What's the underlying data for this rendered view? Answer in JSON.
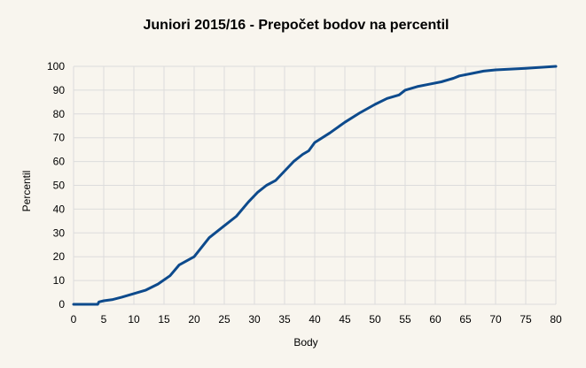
{
  "chart_data": {
    "type": "line",
    "title": "Juniori 2015/16 - Prepočet bodov na percentil",
    "xlabel": "Body",
    "ylabel": "Percentil",
    "xlim": [
      0,
      80
    ],
    "ylim": [
      0,
      100
    ],
    "x_ticks": [
      "0",
      "5",
      "10",
      "15",
      "20",
      "25",
      "30",
      "35",
      "40",
      "45",
      "50",
      "55",
      "60",
      "65",
      "70",
      "75",
      "80"
    ],
    "y_ticks": [
      "0",
      "10",
      "20",
      "30",
      "40",
      "50",
      "60",
      "70",
      "80",
      "90",
      "100"
    ],
    "grid": true,
    "line_color": "#0d4a8c",
    "series": [
      {
        "x": [
          0,
          1,
          2,
          3,
          4,
          4.2,
          5,
          6.5,
          8,
          10,
          12,
          14,
          16,
          17.5,
          20,
          22.5,
          25,
          27,
          29,
          30.5,
          32,
          33.5,
          35,
          36.5,
          38,
          39,
          40,
          42.5,
          45,
          47.5,
          50,
          52,
          54,
          55,
          57,
          59,
          61,
          63,
          64,
          66,
          68,
          70,
          75,
          80
        ],
        "y": [
          0,
          0,
          0,
          0,
          0,
          1,
          1.5,
          2,
          3,
          4.5,
          6,
          8.5,
          12,
          16.5,
          20,
          28,
          33,
          37,
          43,
          47,
          50,
          52,
          56,
          60,
          63,
          64.5,
          68,
          72,
          76.5,
          80.5,
          84,
          86.5,
          88,
          90,
          91.5,
          92.5,
          93.5,
          95,
          96,
          97,
          98,
          98.5,
          99.2,
          100
        ]
      }
    ]
  }
}
